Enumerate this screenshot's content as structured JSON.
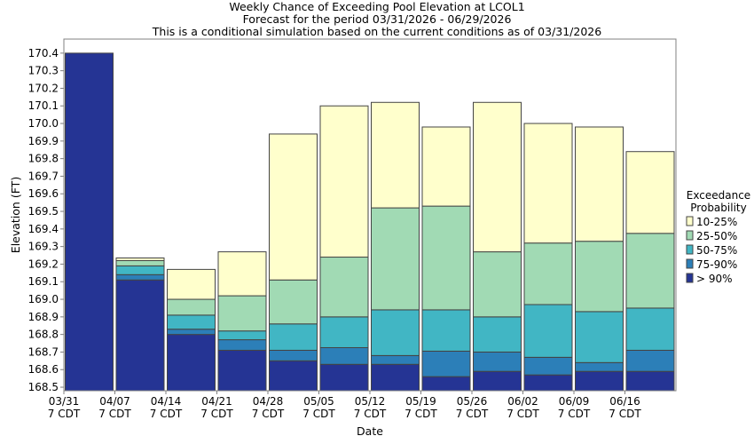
{
  "chart_data": {
    "type": "bar",
    "stacked": true,
    "title": [
      "Weekly Chance of Exceeding Pool Elevation at LCOL1",
      "Forecast for the period 03/31/2026 - 06/29/2026",
      "This is a conditional simulation based on the current conditions as of 03/31/2026"
    ],
    "xlabel": "Date",
    "ylabel": "Elevation (FT)",
    "ylim": [
      168.48,
      170.48
    ],
    "yticks": [
      170.4,
      170.3,
      170.2,
      170.1,
      170.0,
      169.9,
      169.8,
      169.7,
      169.6,
      169.5,
      169.4,
      169.3,
      169.2,
      169.1,
      169.0,
      168.9,
      168.8,
      168.7,
      168.6,
      168.5
    ],
    "ytick_labels": [
      "170.4",
      "170.3",
      "170.2",
      "170.1",
      "170.0",
      "169.9",
      "169.8",
      "169.7",
      "169.6",
      "169.5",
      "169.4",
      "169.3",
      "169.2",
      "169.1",
      "169.0",
      "168.9",
      "168.8",
      "168.7",
      "168.6",
      "168.5"
    ],
    "xtick_labels": [
      {
        "date": "03/31",
        "tz": "7 CDT"
      },
      {
        "date": "04/07",
        "tz": "7 CDT"
      },
      {
        "date": "04/14",
        "tz": "7 CDT"
      },
      {
        "date": "04/21",
        "tz": "7 CDT"
      },
      {
        "date": "04/28",
        "tz": "7 CDT"
      },
      {
        "date": "05/05",
        "tz": "7 CDT"
      },
      {
        "date": "05/12",
        "tz": "7 CDT"
      },
      {
        "date": "05/19",
        "tz": "7 CDT"
      },
      {
        "date": "05/26",
        "tz": "7 CDT"
      },
      {
        "date": "06/02",
        "tz": "7 CDT"
      },
      {
        "date": "06/09",
        "tz": "7 CDT"
      },
      {
        "date": "06/16",
        "tz": "7 CDT"
      }
    ],
    "legend": {
      "title": [
        "Exceedance",
        "Probability"
      ],
      "position": "right",
      "entries": [
        {
          "label": "10-25%",
          "color": "#ffffcc"
        },
        {
          "label": "25-50%",
          "color": "#a1dab4"
        },
        {
          "label": "50-75%",
          "color": "#41b6c4"
        },
        {
          "label": "75-90%",
          "color": "#2c7fb8"
        },
        {
          "label": "> 90%",
          "color": "#253494"
        }
      ]
    },
    "bands": [
      "> 90%",
      "75-90%",
      "50-75%",
      "25-50%",
      "10-25%"
    ],
    "bars": [
      {
        "week": "03/31",
        "levels": [
          170.4,
          170.4,
          170.4,
          170.4,
          170.4
        ]
      },
      {
        "week": "04/07",
        "levels": [
          169.11,
          169.14,
          169.19,
          169.22,
          169.235
        ]
      },
      {
        "week": "04/14",
        "levels": [
          168.8,
          168.83,
          168.91,
          169.0,
          169.17
        ]
      },
      {
        "week": "04/21",
        "levels": [
          168.71,
          168.77,
          168.82,
          169.02,
          169.27
        ]
      },
      {
        "week": "04/28",
        "levels": [
          168.65,
          168.71,
          168.86,
          169.11,
          169.94
        ]
      },
      {
        "week": "05/05",
        "levels": [
          168.63,
          168.725,
          168.9,
          169.24,
          170.1
        ]
      },
      {
        "week": "05/12",
        "levels": [
          168.63,
          168.68,
          168.94,
          169.52,
          170.12
        ]
      },
      {
        "week": "05/19",
        "levels": [
          168.56,
          168.705,
          168.94,
          169.53,
          169.98
        ]
      },
      {
        "week": "05/26",
        "levels": [
          168.59,
          168.7,
          168.9,
          169.27,
          170.12
        ]
      },
      {
        "week": "06/02",
        "levels": [
          168.57,
          168.67,
          168.97,
          169.32,
          170.0
        ]
      },
      {
        "week": "06/09",
        "levels": [
          168.59,
          168.64,
          168.93,
          169.33,
          169.98
        ]
      },
      {
        "week": "06/16",
        "levels": [
          168.59,
          168.71,
          168.95,
          169.375,
          169.84
        ]
      }
    ]
  }
}
